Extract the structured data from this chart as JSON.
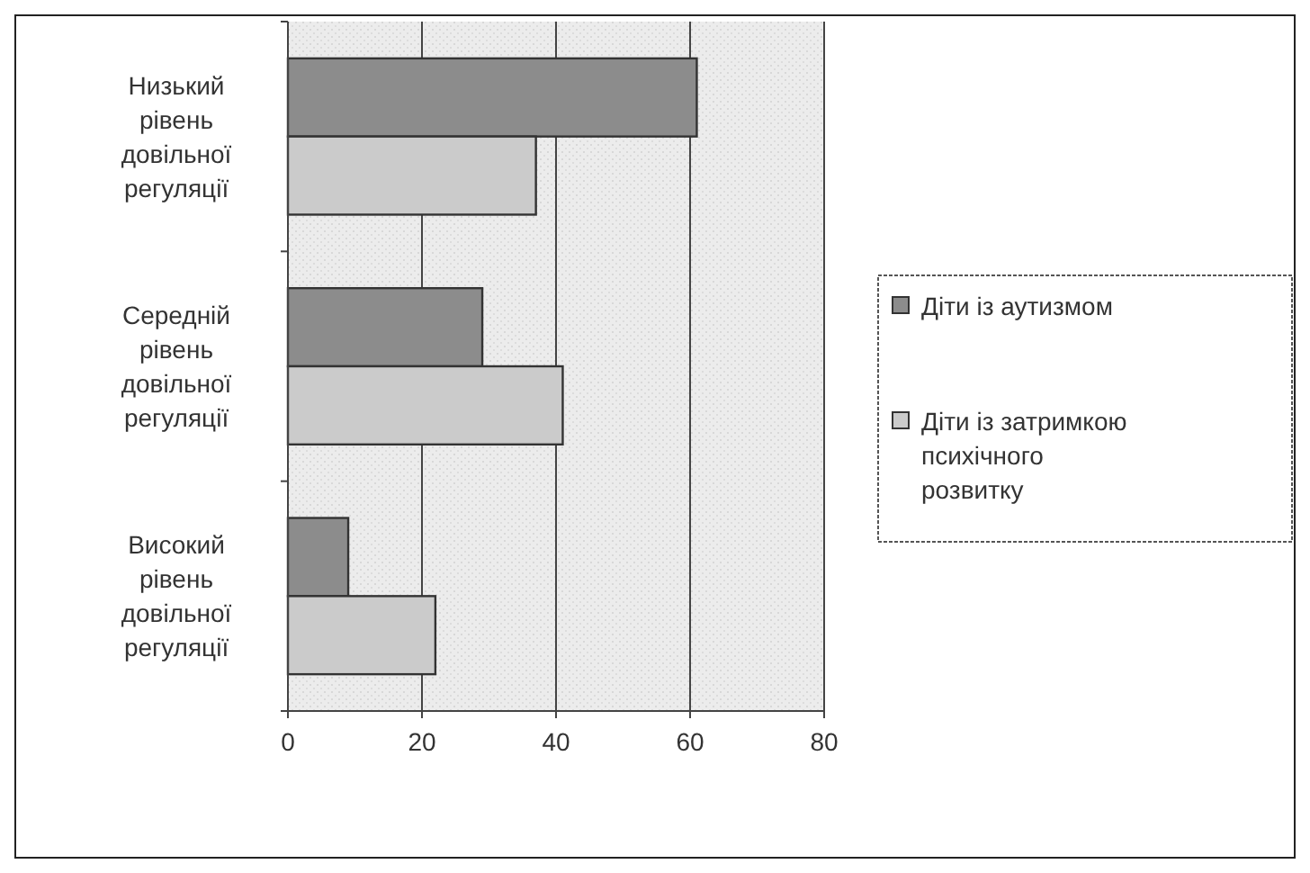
{
  "chart_data": {
    "type": "bar",
    "orientation": "horizontal",
    "categories": [
      "Низький рівень довільної регуляції",
      "Середній рівень довільної регуляції",
      "Високий рівень довільної регуляції"
    ],
    "series": [
      {
        "name": "Діти із аутизмом",
        "color": "#8c8c8c",
        "values": [
          61,
          29,
          9
        ]
      },
      {
        "name": "Діти із затримкою психічного розвитку",
        "color": "#cbcbcb",
        "values": [
          37,
          41,
          22
        ]
      }
    ],
    "xlim": [
      0,
      80
    ],
    "xticks": [
      0,
      20,
      40,
      60,
      80
    ],
    "grid": "x",
    "legend": "right"
  }
}
